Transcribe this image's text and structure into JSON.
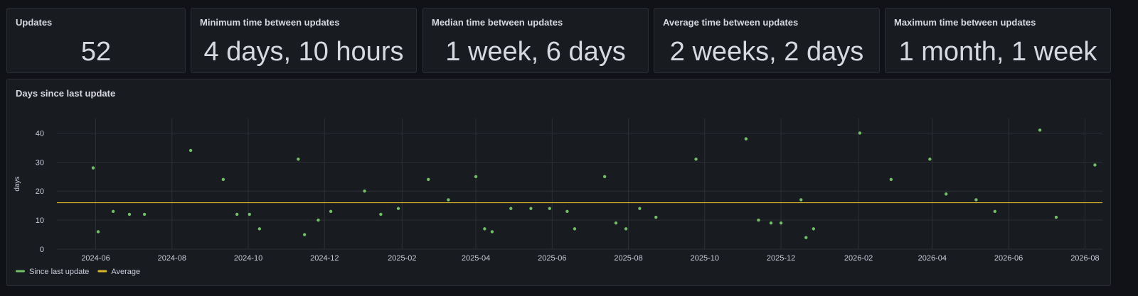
{
  "stats": [
    {
      "title": "Updates",
      "value": "52"
    },
    {
      "title": "Minimum time between updates",
      "value": "4 days, 10 hours"
    },
    {
      "title": "Median time between updates",
      "value": "1 week, 6 days"
    },
    {
      "title": "Average time between updates",
      "value": "2 weeks, 2 days"
    },
    {
      "title": "Maximum time between updates",
      "value": "1 month, 1 week"
    }
  ],
  "chart_panel": {
    "title": "Days since last update"
  },
  "colors": {
    "points": "#73bf69",
    "average": "#d9b52b",
    "grid": "#2c2f35",
    "text": "#ccccdc"
  },
  "chart_data": {
    "type": "scatter",
    "ylabel": "days",
    "ylim": [
      0,
      45
    ],
    "yticks": [
      0,
      10,
      20,
      30,
      40
    ],
    "xlim": [
      "2024-05-01",
      "2026-08-15"
    ],
    "xticks": [
      "2024-06",
      "2024-08",
      "2024-10",
      "2024-12",
      "2025-02",
      "2025-04",
      "2025-06",
      "2025-08",
      "2025-10",
      "2025-12",
      "2026-02",
      "2026-04",
      "2026-06",
      "2026-08"
    ],
    "legend_position": "bottom-left",
    "series": [
      {
        "name": "Since last update",
        "points": [
          [
            "2024-05-30",
            28
          ],
          [
            "2024-06-03",
            6
          ],
          [
            "2024-06-15",
            13
          ],
          [
            "2024-06-28",
            12
          ],
          [
            "2024-07-10",
            12
          ],
          [
            "2024-08-16",
            34
          ],
          [
            "2024-09-11",
            24
          ],
          [
            "2024-09-22",
            12
          ],
          [
            "2024-10-02",
            12
          ],
          [
            "2024-10-10",
            7
          ],
          [
            "2024-11-10",
            31
          ],
          [
            "2024-11-15",
            5
          ],
          [
            "2024-11-26",
            10
          ],
          [
            "2024-12-06",
            13
          ],
          [
            "2025-01-02",
            20
          ],
          [
            "2025-01-15",
            12
          ],
          [
            "2025-01-29",
            14
          ],
          [
            "2025-02-22",
            24
          ],
          [
            "2025-03-10",
            17
          ],
          [
            "2025-04-01",
            25
          ],
          [
            "2025-04-08",
            7
          ],
          [
            "2025-04-14",
            6
          ],
          [
            "2025-04-29",
            14
          ],
          [
            "2025-05-15",
            14
          ],
          [
            "2025-05-30",
            14
          ],
          [
            "2025-06-13",
            13
          ],
          [
            "2025-06-19",
            7
          ],
          [
            "2025-07-13",
            25
          ],
          [
            "2025-07-22",
            9
          ],
          [
            "2025-07-30",
            7
          ],
          [
            "2025-08-10",
            14
          ],
          [
            "2025-08-23",
            11
          ],
          [
            "2025-09-24",
            31
          ],
          [
            "2025-11-03",
            38
          ],
          [
            "2025-11-13",
            10
          ],
          [
            "2025-11-23",
            9
          ],
          [
            "2025-12-01",
            9
          ],
          [
            "2025-12-17",
            17
          ],
          [
            "2025-12-21",
            4
          ],
          [
            "2025-12-27",
            7
          ],
          [
            "2026-02-02",
            40
          ],
          [
            "2026-02-27",
            24
          ],
          [
            "2026-03-30",
            31
          ],
          [
            "2026-04-12",
            19
          ],
          [
            "2026-05-06",
            17
          ],
          [
            "2026-05-21",
            13
          ],
          [
            "2026-06-26",
            41
          ],
          [
            "2026-07-09",
            11
          ],
          [
            "2026-08-09",
            29
          ]
        ]
      },
      {
        "name": "Average",
        "type": "line",
        "value": 16
      }
    ]
  }
}
